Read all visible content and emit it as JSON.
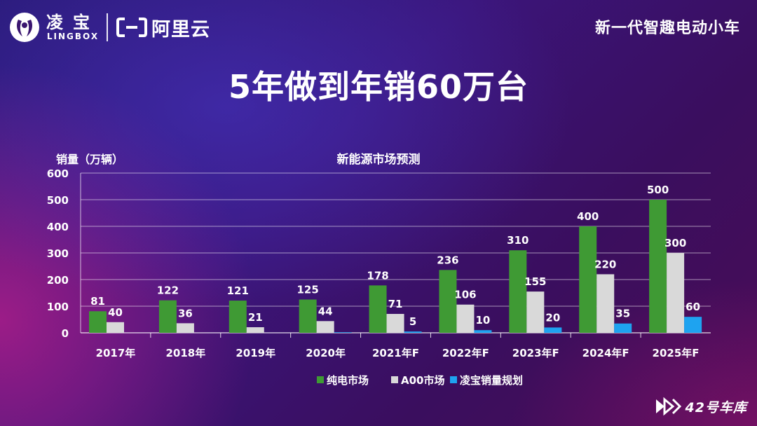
{
  "brand": {
    "lingbao_cn": "凌宝",
    "lingbao_en": "LINGBOX",
    "aliyun": "阿里云"
  },
  "slogan": "新一代智趣电动小车",
  "headline": "5年做到年销60万台",
  "footer_text": "42号车库",
  "colors": {
    "pure_ev": "#3f9a34",
    "a00": "#d9d9d9",
    "lingbao": "#1ea3f0"
  },
  "chart_data": {
    "type": "bar",
    "title": "新能源市场预测",
    "ylabel": "销量（万辆）",
    "xlabel": "",
    "ylim": [
      0,
      600
    ],
    "yticks": [
      0,
      100,
      200,
      300,
      400,
      500,
      600
    ],
    "grid": true,
    "legend_position": "bottom",
    "categories": [
      "2017年",
      "2018年",
      "2019年",
      "2020年",
      "2021年F",
      "2022年F",
      "2023年F",
      "2024年F",
      "2025年F"
    ],
    "series": [
      {
        "name": "纯电市场",
        "values": [
          81,
          122,
          121,
          125,
          178,
          236,
          310,
          400,
          500
        ],
        "labels": [
          "81",
          "122",
          "121",
          "125",
          "178",
          "236",
          "310",
          "400",
          "500"
        ]
      },
      {
        "name": "A00市场",
        "values": [
          40,
          36,
          21,
          44,
          71,
          106,
          155,
          220,
          300
        ],
        "labels": [
          "40",
          "36",
          "21",
          "44",
          "71",
          "106",
          "155",
          "220",
          "300"
        ]
      },
      {
        "name": "凌宝销量规划",
        "values": [
          0,
          0,
          0,
          2,
          5,
          10,
          20,
          35,
          60
        ],
        "labels": [
          "",
          "",
          "",
          "",
          "5",
          "10",
          "20",
          "35",
          "60"
        ]
      }
    ]
  }
}
